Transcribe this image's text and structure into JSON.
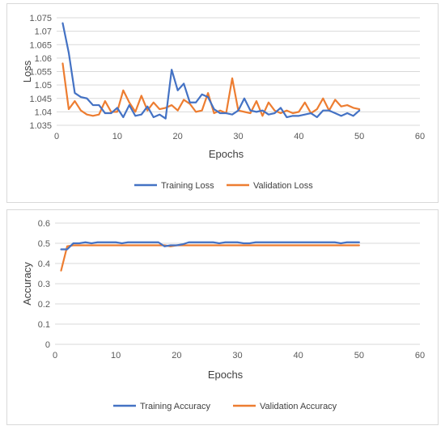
{
  "colors": {
    "training": "#4472C4",
    "validation": "#ED7D31"
  },
  "chart_data": [
    {
      "type": "line",
      "xlabel": "Epochs",
      "ylabel": "Loss",
      "xlim": [
        0,
        60
      ],
      "ylim": [
        1.035,
        1.075
      ],
      "xticks": [
        0,
        10,
        20,
        30,
        40,
        50,
        60
      ],
      "yticks": [
        1.035,
        1.04,
        1.045,
        1.05,
        1.055,
        1.06,
        1.065,
        1.07,
        1.075
      ],
      "ytick_labels": [
        "1.035",
        "1.04",
        "1.045",
        "1.05",
        "1.055",
        "1.06",
        "1.065",
        "1.07",
        "1.075"
      ],
      "grid": true,
      "legend_position": "bottom",
      "x": [
        1,
        2,
        3,
        4,
        5,
        6,
        7,
        8,
        9,
        10,
        11,
        12,
        13,
        14,
        15,
        16,
        17,
        18,
        19,
        20,
        21,
        22,
        23,
        24,
        25,
        26,
        27,
        28,
        29,
        30,
        31,
        32,
        33,
        34,
        35,
        36,
        37,
        38,
        39,
        40,
        41,
        42,
        43,
        44,
        45,
        46,
        47,
        48,
        49,
        50
      ],
      "series": [
        {
          "name": "Training Loss",
          "color_key": "training",
          "values": [
            1.073,
            1.062,
            1.047,
            1.0455,
            1.045,
            1.0425,
            1.0425,
            1.0395,
            1.0395,
            1.0415,
            1.038,
            1.0425,
            1.0385,
            1.039,
            1.042,
            1.038,
            1.039,
            1.0375,
            1.0557,
            1.048,
            1.0505,
            1.0435,
            1.0435,
            1.0465,
            1.0455,
            1.041,
            1.0395,
            1.0395,
            1.039,
            1.0405,
            1.045,
            1.0405,
            1.04,
            1.0405,
            1.039,
            1.0395,
            1.0415,
            1.038,
            1.0385,
            1.0385,
            1.039,
            1.0395,
            1.038,
            1.0405,
            1.0405,
            1.0395,
            1.0385,
            1.0395,
            1.0385,
            1.0405
          ]
        },
        {
          "name": "Validation Loss",
          "color_key": "validation",
          "values": [
            1.058,
            1.041,
            1.044,
            1.0405,
            1.039,
            1.0385,
            1.039,
            1.044,
            1.04,
            1.04,
            1.048,
            1.0435,
            1.04,
            1.046,
            1.0405,
            1.0435,
            1.041,
            1.0415,
            1.0425,
            1.0405,
            1.0445,
            1.043,
            1.04,
            1.0405,
            1.047,
            1.0395,
            1.0405,
            1.0395,
            1.0525,
            1.0405,
            1.04,
            1.0395,
            1.044,
            1.0385,
            1.0435,
            1.0405,
            1.0395,
            1.0405,
            1.0395,
            1.04,
            1.0435,
            1.0395,
            1.041,
            1.045,
            1.0405,
            1.0445,
            1.042,
            1.0425,
            1.0415,
            1.041
          ]
        }
      ]
    },
    {
      "type": "line",
      "xlabel": "Epochs",
      "ylabel": "Accuracy",
      "xlim": [
        0,
        60
      ],
      "ylim": [
        0,
        0.6
      ],
      "xticks": [
        0,
        10,
        20,
        30,
        40,
        50,
        60
      ],
      "yticks": [
        0,
        0.1,
        0.2,
        0.3,
        0.4,
        0.5,
        0.6
      ],
      "ytick_labels": [
        "0",
        "0.1",
        "0.2",
        "0.3",
        "0.4",
        "0.5",
        "0.6"
      ],
      "grid": true,
      "legend_position": "bottom",
      "x": [
        1,
        2,
        3,
        4,
        5,
        6,
        7,
        8,
        9,
        10,
        11,
        12,
        13,
        14,
        15,
        16,
        17,
        18,
        19,
        20,
        21,
        22,
        23,
        24,
        25,
        26,
        27,
        28,
        29,
        30,
        31,
        32,
        33,
        34,
        35,
        36,
        37,
        38,
        39,
        40,
        41,
        42,
        43,
        44,
        45,
        46,
        47,
        48,
        49,
        50
      ],
      "series": [
        {
          "name": "Training Accuracy",
          "color_key": "training",
          "values": [
            0.47,
            0.47,
            0.5,
            0.5,
            0.505,
            0.5,
            0.505,
            0.505,
            0.505,
            0.505,
            0.5,
            0.505,
            0.505,
            0.505,
            0.505,
            0.505,
            0.505,
            0.485,
            0.49,
            0.49,
            0.495,
            0.505,
            0.505,
            0.505,
            0.505,
            0.505,
            0.5,
            0.505,
            0.505,
            0.505,
            0.5,
            0.5,
            0.505,
            0.505,
            0.505,
            0.505,
            0.505,
            0.505,
            0.505,
            0.505,
            0.505,
            0.505,
            0.505,
            0.505,
            0.505,
            0.505,
            0.5,
            0.505,
            0.505,
            0.505
          ]
        },
        {
          "name": "Validation Accuracy",
          "color_key": "validation",
          "values": [
            0.365,
            0.485,
            0.49,
            0.49,
            0.49,
            0.49,
            0.49,
            0.49,
            0.49,
            0.49,
            0.49,
            0.49,
            0.49,
            0.49,
            0.49,
            0.49,
            0.49,
            0.49,
            0.485,
            0.49,
            0.49,
            0.49,
            0.49,
            0.49,
            0.49,
            0.49,
            0.49,
            0.49,
            0.49,
            0.49,
            0.49,
            0.49,
            0.49,
            0.49,
            0.49,
            0.49,
            0.49,
            0.49,
            0.49,
            0.49,
            0.49,
            0.49,
            0.49,
            0.49,
            0.49,
            0.49,
            0.49,
            0.49,
            0.49,
            0.49
          ]
        }
      ]
    }
  ]
}
